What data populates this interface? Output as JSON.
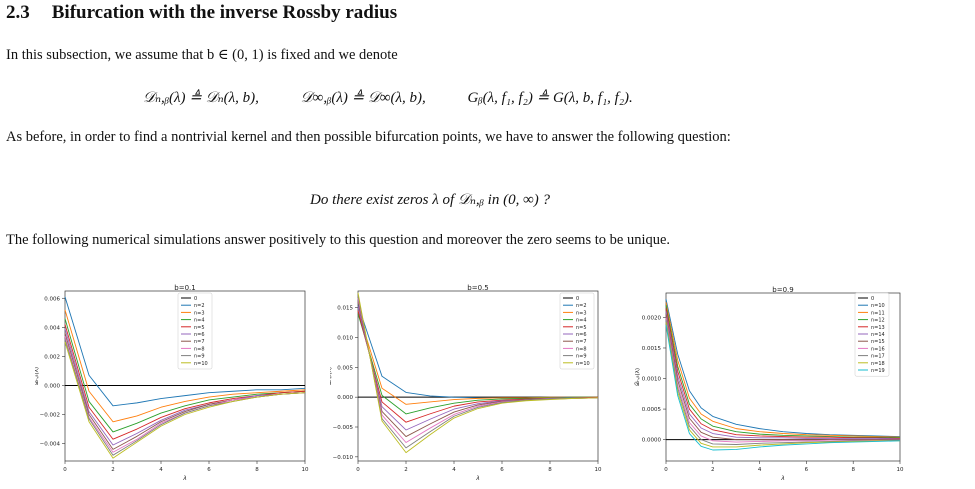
{
  "section": {
    "number": "2.3",
    "title": "Bifurcation with the inverse Rossby radius"
  },
  "paragraph1": "In this subsection, we assume that b ∈ (0, 1) is fixed and we denote",
  "equation1": {
    "part1": "𝒟ₙ,ᵦ(λ) ≜ 𝒟ₙ(λ, b),",
    "part2": "𝒟∞,ᵦ(λ) ≜ 𝒟∞(λ, b),",
    "part3": "Gᵦ(λ, f₁, f₂) ≜ G(λ, b, f₁, f₂)."
  },
  "paragraph2": "As before, in order to find a nontrivial kernel and then possible bifurcation points, we have to answer the following question:",
  "question": "Do there exist zeros λ of 𝒟ₙ,ᵦ in (0, ∞) ?",
  "paragraph3": "The following numerical simulations answer positively to this question and moreover the zero seems to be unique.",
  "chart_data": [
    {
      "type": "line",
      "title": "b=0.1",
      "xlabel": "λ",
      "ylabel": "𝒟ₙ,ᵦ(λ)",
      "xlim": [
        0,
        10
      ],
      "ylim": [
        -0.0052,
        0.0065
      ],
      "xticks": [
        "0",
        "2",
        "4",
        "6",
        "8",
        "10"
      ],
      "yticks": [
        {
          "v": 0.006,
          "t": "0.006"
        },
        {
          "v": 0.004,
          "t": "0.004"
        },
        {
          "v": 0.002,
          "t": "0.002"
        },
        {
          "v": 0.0,
          "t": "0.000"
        },
        {
          "v": -0.002,
          "t": "−0.002"
        },
        {
          "v": -0.004,
          "t": "−0.004"
        }
      ],
      "legend_position": "top-center",
      "legend": [
        "0",
        "n=2",
        "n=3",
        "n=4",
        "n=5",
        "n=6",
        "n=7",
        "n=8",
        "n=9",
        "n=10"
      ],
      "x": [
        0,
        1,
        2,
        3,
        4,
        5,
        6,
        7,
        8,
        9,
        10
      ],
      "series": [
        {
          "name": "0",
          "values": [
            0,
            0,
            0,
            0,
            0,
            0,
            0,
            0,
            0,
            0,
            0
          ]
        },
        {
          "name": "n=2",
          "values": [
            0.0061,
            0.0007,
            -0.0014,
            -0.0012,
            -0.0009,
            -0.0007,
            -0.0005,
            -0.0004,
            -0.0003,
            -0.0003,
            -0.0002
          ]
        },
        {
          "name": "n=3",
          "values": [
            0.0052,
            -0.0004,
            -0.0025,
            -0.0021,
            -0.0015,
            -0.0011,
            -0.0008,
            -0.0006,
            -0.0005,
            -0.0004,
            -0.0003
          ]
        },
        {
          "name": "n=4",
          "values": [
            0.0046,
            -0.0011,
            -0.0032,
            -0.0026,
            -0.0019,
            -0.0014,
            -0.001,
            -0.0008,
            -0.0006,
            -0.0005,
            -0.0004
          ]
        },
        {
          "name": "n=5",
          "values": [
            0.0042,
            -0.0015,
            -0.0037,
            -0.003,
            -0.0022,
            -0.0016,
            -0.0012,
            -0.0009,
            -0.0007,
            -0.0005,
            -0.0004
          ]
        },
        {
          "name": "n=6",
          "values": [
            0.0039,
            -0.0018,
            -0.0041,
            -0.0033,
            -0.0024,
            -0.0017,
            -0.0013,
            -0.001,
            -0.0007,
            -0.0006,
            -0.0005
          ]
        },
        {
          "name": "n=7",
          "values": [
            0.0036,
            -0.002,
            -0.0044,
            -0.0035,
            -0.0025,
            -0.0018,
            -0.0013,
            -0.001,
            -0.0008,
            -0.0006,
            -0.0005
          ]
        },
        {
          "name": "n=8",
          "values": [
            0.0034,
            -0.0022,
            -0.0046,
            -0.0037,
            -0.0026,
            -0.0019,
            -0.0014,
            -0.001,
            -0.0008,
            -0.0006,
            -0.0005
          ]
        },
        {
          "name": "n=9",
          "values": [
            0.0032,
            -0.0023,
            -0.0048,
            -0.0038,
            -0.0027,
            -0.0019,
            -0.0014,
            -0.0011,
            -0.0008,
            -0.0006,
            -0.0005
          ]
        },
        {
          "name": "n=10",
          "values": [
            0.003,
            -0.0025,
            -0.005,
            -0.0039,
            -0.0028,
            -0.002,
            -0.0015,
            -0.0011,
            -0.0008,
            -0.0006,
            -0.0005
          ]
        }
      ]
    },
    {
      "type": "line",
      "title": "b=0.5",
      "xlabel": "λ",
      "ylabel": "𝒟ₙ,ᵦ(λ)",
      "xlim": [
        0,
        10
      ],
      "ylim": [
        -0.0107,
        0.0178
      ],
      "xticks": [
        "0",
        "2",
        "4",
        "6",
        "8",
        "10"
      ],
      "yticks": [
        {
          "v": 0.015,
          "t": "0.015"
        },
        {
          "v": 0.01,
          "t": "0.010"
        },
        {
          "v": 0.005,
          "t": "0.005"
        },
        {
          "v": 0.0,
          "t": "0.000"
        },
        {
          "v": -0.005,
          "t": "−0.005"
        },
        {
          "v": -0.01,
          "t": "−0.010"
        }
      ],
      "legend_position": "top-right",
      "legend": [
        "0",
        "n=2",
        "n=3",
        "n=4",
        "n=5",
        "n=6",
        "n=7",
        "n=8",
        "n=9",
        "n=10"
      ],
      "x": [
        0,
        1,
        2,
        3,
        4,
        5,
        6,
        7,
        8,
        9,
        10
      ],
      "series": [
        {
          "name": "0",
          "values": [
            0,
            0,
            0,
            0,
            0,
            0,
            0,
            0,
            0,
            0,
            0
          ]
        },
        {
          "name": "n=2",
          "values": [
            0.0155,
            0.0035,
            0.0008,
            0.0002,
            0.0,
            -0.0001,
            -0.0001,
            -0.0001,
            0,
            0,
            0
          ]
        },
        {
          "name": "n=3",
          "values": [
            0.0145,
            0.0015,
            -0.0012,
            -0.0008,
            -0.0004,
            -0.0002,
            -0.0001,
            -0.0001,
            0,
            0,
            0
          ]
        },
        {
          "name": "n=4",
          "values": [
            0.014,
            0.0003,
            -0.0028,
            -0.0018,
            -0.001,
            -0.0005,
            -0.0003,
            -0.0002,
            -0.0001,
            0,
            0
          ]
        },
        {
          "name": "n=5",
          "values": [
            0.0145,
            -0.0008,
            -0.0042,
            -0.0028,
            -0.0015,
            -0.0008,
            -0.0005,
            -0.0003,
            -0.0002,
            -0.0001,
            0
          ]
        },
        {
          "name": "n=6",
          "values": [
            0.0152,
            -0.0016,
            -0.0055,
            -0.0037,
            -0.002,
            -0.0011,
            -0.0006,
            -0.0004,
            -0.0002,
            -0.0001,
            -0.0001
          ]
        },
        {
          "name": "n=7",
          "values": [
            0.016,
            -0.0024,
            -0.0066,
            -0.0045,
            -0.0025,
            -0.0013,
            -0.0007,
            -0.0004,
            -0.0003,
            -0.0002,
            -0.0001
          ]
        },
        {
          "name": "n=8",
          "values": [
            0.0166,
            -0.003,
            -0.0076,
            -0.0052,
            -0.0029,
            -0.0015,
            -0.0008,
            -0.0005,
            -0.0003,
            -0.0002,
            -0.0001
          ]
        },
        {
          "name": "n=9",
          "values": [
            0.0171,
            -0.0036,
            -0.0085,
            -0.0058,
            -0.0032,
            -0.0017,
            -0.0009,
            -0.0005,
            -0.0003,
            -0.0002,
            -0.0001
          ]
        },
        {
          "name": "n=10",
          "values": [
            0.0175,
            -0.004,
            -0.0093,
            -0.0063,
            -0.0035,
            -0.0019,
            -0.001,
            -0.0006,
            -0.0004,
            -0.0002,
            -0.0001
          ]
        }
      ]
    },
    {
      "type": "line",
      "title": "b=0.9",
      "xlabel": "λ",
      "ylabel": "𝒟ₙ,ᵦ(λ)",
      "xlim": [
        0,
        10
      ],
      "ylim": [
        -0.00035,
        0.0024
      ],
      "xticks": [
        "0",
        "2",
        "4",
        "6",
        "8",
        "10"
      ],
      "yticks": [
        {
          "v": 0.002,
          "t": "0.0020"
        },
        {
          "v": 0.0015,
          "t": "0.0015"
        },
        {
          "v": 0.001,
          "t": "0.0010"
        },
        {
          "v": 0.0005,
          "t": "0.0005"
        },
        {
          "v": 0.0,
          "t": "0.0000"
        }
      ],
      "legend_position": "top-right",
      "legend": [
        "0",
        "n=10",
        "n=11",
        "n=12",
        "n=13",
        "n=14",
        "n=15",
        "n=16",
        "n=17",
        "n=18",
        "n=19"
      ],
      "x": [
        0,
        0.5,
        1,
        1.5,
        2,
        3,
        4,
        5,
        6,
        7,
        8,
        9,
        10
      ],
      "series": [
        {
          "name": "0",
          "values": [
            0,
            0,
            0,
            0,
            0,
            0,
            0,
            0,
            0,
            0,
            0,
            0,
            0
          ]
        },
        {
          "name": "n=10",
          "values": [
            0.0023,
            0.0014,
            0.0008,
            0.00052,
            0.00038,
            0.00025,
            0.00018,
            0.00013,
            0.0001,
            8e-05,
            7e-05,
            6e-05,
            5e-05
          ]
        },
        {
          "name": "n=11",
          "values": [
            0.00225,
            0.0013,
            0.00068,
            0.00042,
            0.0003,
            0.00018,
            0.00013,
            0.0001,
            8e-05,
            7e-05,
            6e-05,
            5e-05,
            4e-05
          ]
        },
        {
          "name": "n=12",
          "values": [
            0.0022,
            0.0012,
            0.00058,
            0.00034,
            0.00022,
            0.00013,
            9e-05,
            7e-05,
            6e-05,
            5e-05,
            4e-05,
            4e-05,
            3e-05
          ]
        },
        {
          "name": "n=13",
          "values": [
            0.00215,
            0.00112,
            0.0005,
            0.00026,
            0.00016,
            8e-05,
            6e-05,
            5e-05,
            4e-05,
            4e-05,
            3e-05,
            3e-05,
            2e-05
          ]
        },
        {
          "name": "n=14",
          "values": [
            0.0021,
            0.00104,
            0.00042,
            0.00019,
            0.0001,
            4e-05,
            3e-05,
            3e-05,
            2e-05,
            2e-05,
            2e-05,
            2e-05,
            1e-05
          ]
        },
        {
          "name": "n=15",
          "values": [
            0.00205,
            0.00097,
            0.00035,
            0.00012,
            4e-05,
            0.0,
            0.0,
            0.0,
            0.0,
            0.0,
            0.0,
            0.0,
            0.0
          ]
        },
        {
          "name": "n=16",
          "values": [
            0.002,
            0.0009,
            0.00028,
            6e-05,
            -2e-05,
            -4e-05,
            -3e-05,
            -2e-05,
            -2e-05,
            -1e-05,
            -1e-05,
            -1e-05,
            -1e-05
          ]
        },
        {
          "name": "n=17",
          "values": [
            0.00196,
            0.00084,
            0.00022,
            0.0,
            -7e-05,
            -8e-05,
            -6e-05,
            -5e-05,
            -4e-05,
            -3e-05,
            -2e-05,
            -2e-05,
            -1e-05
          ]
        },
        {
          "name": "n=18",
          "values": [
            0.00192,
            0.00078,
            0.00016,
            -6e-05,
            -0.00012,
            -0.00012,
            -9e-05,
            -7e-05,
            -5e-05,
            -4e-05,
            -3e-05,
            -2e-05,
            -2e-05
          ]
        },
        {
          "name": "n=19",
          "values": [
            0.00188,
            0.00072,
            0.0001,
            -0.00011,
            -0.00017,
            -0.00016,
            -0.00012,
            -9e-05,
            -7e-05,
            -5e-05,
            -4e-05,
            -3e-05,
            -2e-05
          ]
        }
      ]
    }
  ],
  "colors": [
    "#000000",
    "#1f77b4",
    "#ff7f0e",
    "#2ca02c",
    "#d62728",
    "#9467bd",
    "#8c564b",
    "#e377c2",
    "#7f7f7f",
    "#bcbd22",
    "#17becf"
  ]
}
